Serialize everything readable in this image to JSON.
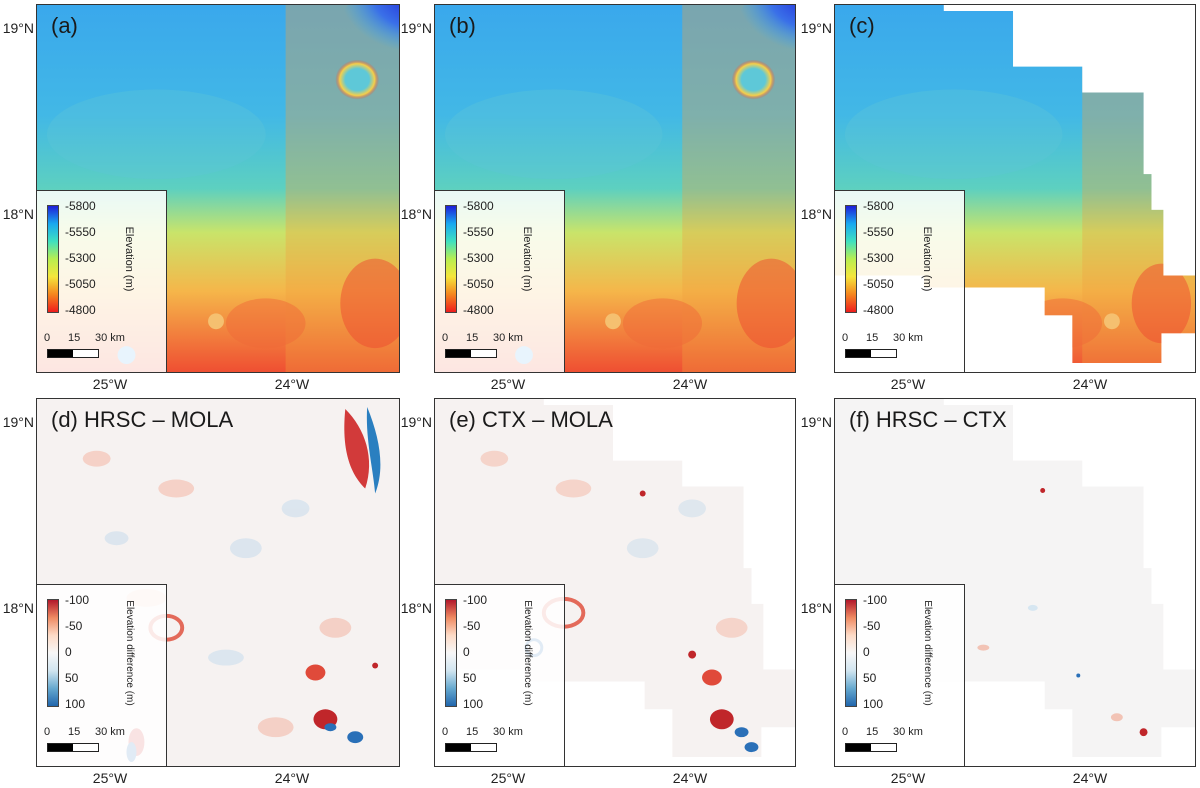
{
  "panels": [
    {
      "id": "a",
      "label": "(a)",
      "kind": "elevation"
    },
    {
      "id": "b",
      "label": "(b)",
      "kind": "elevation"
    },
    {
      "id": "c",
      "label": "(c)",
      "kind": "elevation"
    },
    {
      "id": "d",
      "label": "(d) HRSC – MOLA",
      "kind": "difference"
    },
    {
      "id": "e",
      "label": "(e) CTX – MOLA",
      "kind": "difference"
    },
    {
      "id": "f",
      "label": "(f) HRSC – CTX",
      "kind": "difference"
    }
  ],
  "axes": {
    "lat_labels": [
      "19°N",
      "18°N"
    ],
    "lon_labels": [
      "25°W",
      "24°W"
    ]
  },
  "legends": {
    "elevation": {
      "title": "Elevation (m)",
      "ticks": [
        "-5800",
        "-5550",
        "-5300",
        "-5050",
        "-4800"
      ],
      "colors": [
        "#1f1fd8",
        "#19a8f0",
        "#3fe0c0",
        "#b8ee50",
        "#f5e63c",
        "#f5861e",
        "#ee1d1d"
      ]
    },
    "difference": {
      "title": "Elevation difference (m)",
      "ticks": [
        "-100",
        "-50",
        "0",
        "50",
        "100"
      ],
      "colors": [
        "#b2182b",
        "#ef8a62",
        "#fddbc7",
        "#f7f7f7",
        "#d1e5f0",
        "#67a9cf",
        "#2166ac"
      ]
    }
  },
  "scalebar": {
    "labels": [
      "0",
      "15",
      "30 km"
    ]
  }
}
